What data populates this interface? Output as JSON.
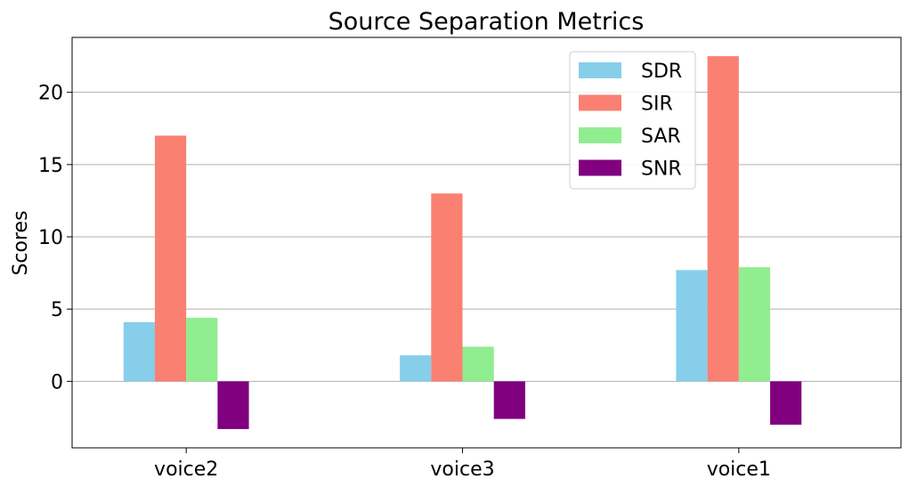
{
  "chart_data": {
    "type": "bar",
    "title": "Source Separation Metrics",
    "xlabel": "",
    "ylabel": "Scores",
    "categories": [
      "voice2",
      "voice3",
      "voice1"
    ],
    "series": [
      {
        "name": "SDR",
        "color": "#87CEEB",
        "values": [
          4.1,
          1.8,
          7.7
        ]
      },
      {
        "name": "SIR",
        "color": "#FA8072",
        "values": [
          17.0,
          13.0,
          22.5
        ]
      },
      {
        "name": "SAR",
        "color": "#90EE90",
        "values": [
          4.4,
          2.4,
          7.9
        ]
      },
      {
        "name": "SNR",
        "color": "#800080",
        "values": [
          -3.3,
          -2.6,
          -3.0
        ]
      }
    ],
    "ylim": [
      -4.6,
      23.8
    ],
    "yticks": [
      0,
      5,
      10,
      15,
      20
    ],
    "grid": "y",
    "legend_position": "top-right"
  }
}
